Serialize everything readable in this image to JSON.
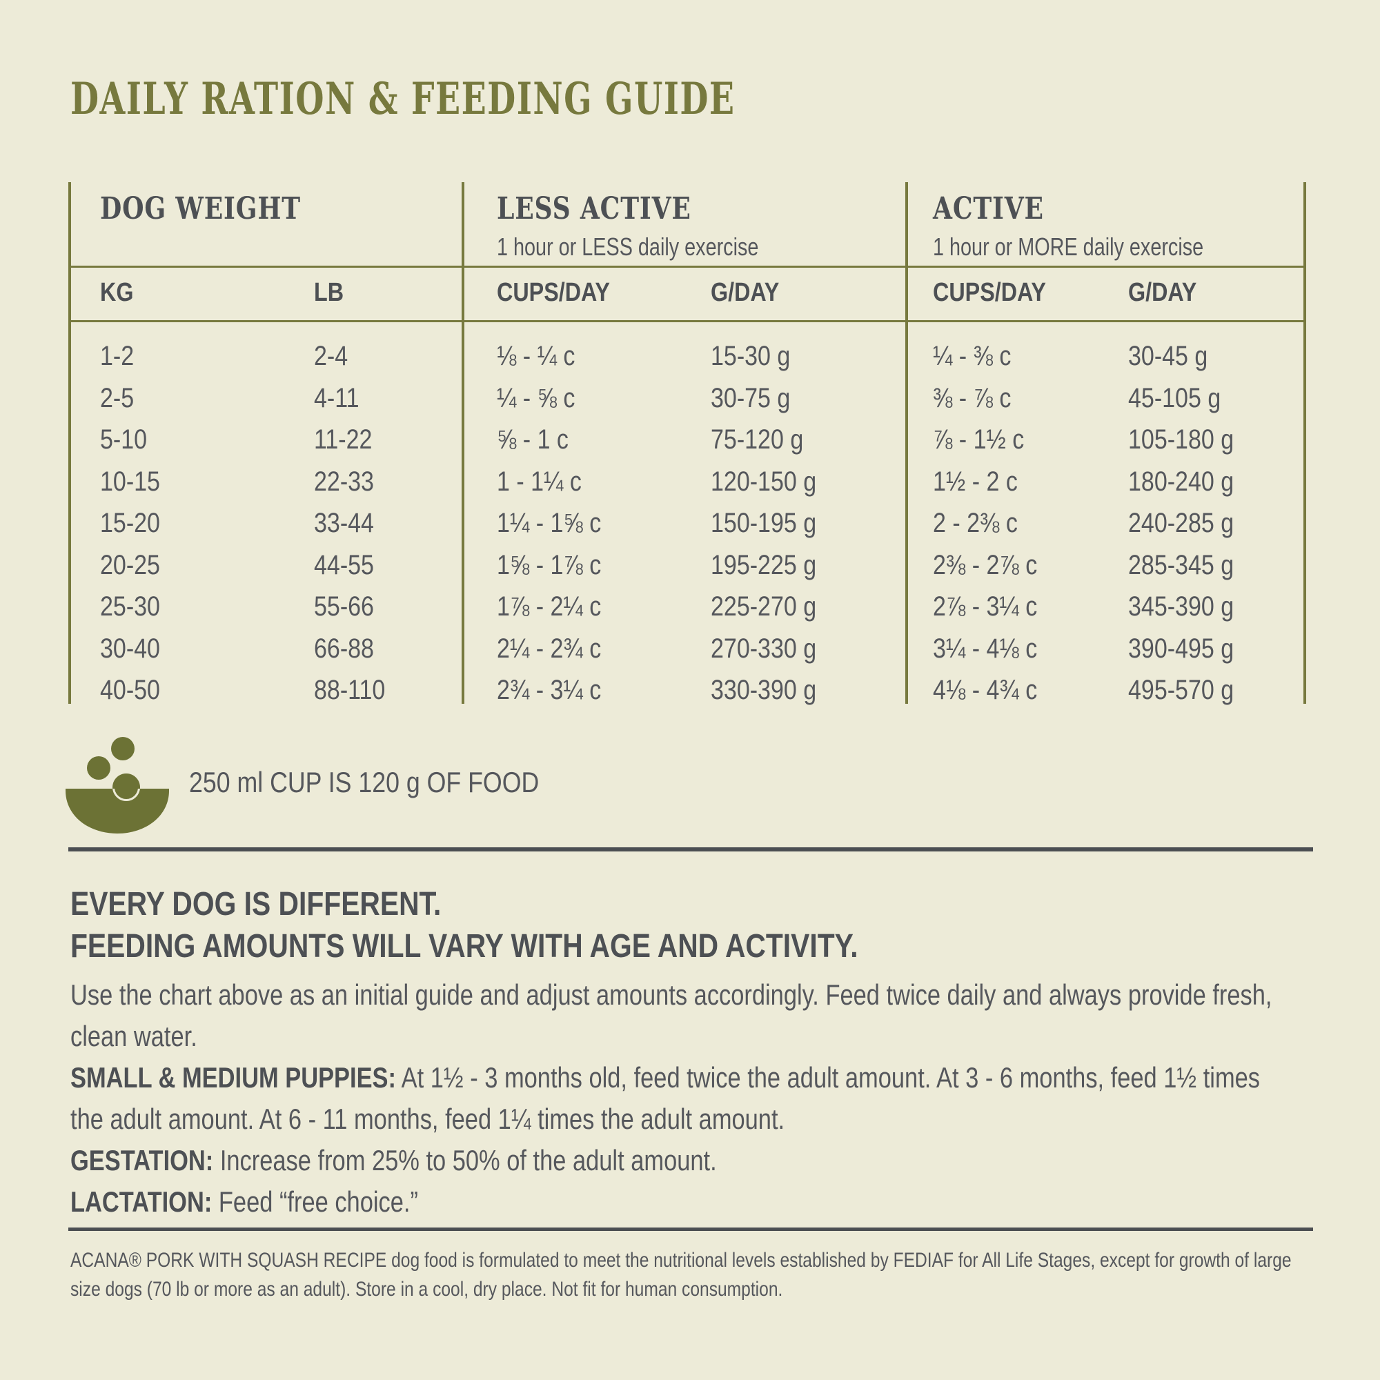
{
  "title": "DAILY RATION & FEEDING GUIDE",
  "table": {
    "groups": [
      {
        "label": "DOG WEIGHT",
        "sub": ""
      },
      {
        "label": "LESS ACTIVE",
        "sub": "1 hour or LESS daily exercise"
      },
      {
        "label": "ACTIVE",
        "sub": "1 hour or MORE daily exercise"
      }
    ],
    "columns": [
      "KG",
      "LB",
      "CUPS/DAY",
      "G/DAY",
      "CUPS/DAY",
      "G/DAY"
    ],
    "rows": [
      [
        "1-2",
        "2-4",
        "⅛ - ¼ c",
        "15-30 g",
        "¼ - ⅜ c",
        "30-45 g"
      ],
      [
        "2-5",
        "4-11",
        "¼ - ⅝ c",
        "30-75 g",
        "⅜ - ⅞ c",
        "45-105 g"
      ],
      [
        "5-10",
        "11-22",
        "⅝ - 1 c",
        "75-120 g",
        "⅞ - 1½ c",
        "105-180 g"
      ],
      [
        "10-15",
        "22-33",
        "1 - 1¼ c",
        "120-150 g",
        "1½ - 2 c",
        "180-240 g"
      ],
      [
        "15-20",
        "33-44",
        "1¼ - 1⅝ c",
        "150-195 g",
        "2 - 2⅜ c",
        "240-285 g"
      ],
      [
        "20-25",
        "44-55",
        "1⅝ - 1⅞ c",
        "195-225 g",
        "2⅜ - 2⅞ c",
        "285-345 g"
      ],
      [
        "25-30",
        "55-66",
        "1⅞ - 2¼ c",
        "225-270 g",
        "2⅞ - 3¼ c",
        "345-390 g"
      ],
      [
        "30-40",
        "66-88",
        "2¼ - 2¾ c",
        "270-330 g",
        "3¼ - 4⅛ c",
        "390-495 g"
      ],
      [
        "40-50",
        "88-110",
        "2¾ - 3¼ c",
        "330-390 g",
        "4⅛ - 4¾ c",
        "495-570 g"
      ]
    ]
  },
  "cup_note": "250 ml CUP IS 120 g OF FOOD",
  "notes": {
    "heading_line1": "EVERY DOG IS DIFFERENT.",
    "heading_line2": "FEEDING AMOUNTS WILL VARY WITH AGE AND ACTIVITY.",
    "intro": "Use the chart above as an initial guide and adjust amounts accordingly. Feed twice daily and always provide fresh, clean water.",
    "puppies_label": "SMALL & MEDIUM PUPPIES:",
    "puppies_text": " At 1½ - 3 months old, feed twice the adult amount. At 3 - 6 months, feed 1½ times the adult amount. At 6 - 11 months, feed 1¼ times the adult amount.",
    "gestation_label": "GESTATION:",
    "gestation_text": " Increase from 25% to 50% of the adult amount.",
    "lactation_label": "LACTATION:",
    "lactation_text": " Feed “free choice.”"
  },
  "footer": "ACANA® PORK WITH SQUASH RECIPE dog food is formulated to meet the nutritional levels established by FEDIAF for All Life Stages, except for growth of large size dogs (70 lb or more as an adult). Store in a cool, dry place. Not fit for human consumption.",
  "colors": {
    "background": "#edebd8",
    "olive": "#77793e",
    "bowl": "#6c7235",
    "text": "#55575c",
    "text_bold": "#4d5054",
    "rule": "#4b4e52"
  }
}
